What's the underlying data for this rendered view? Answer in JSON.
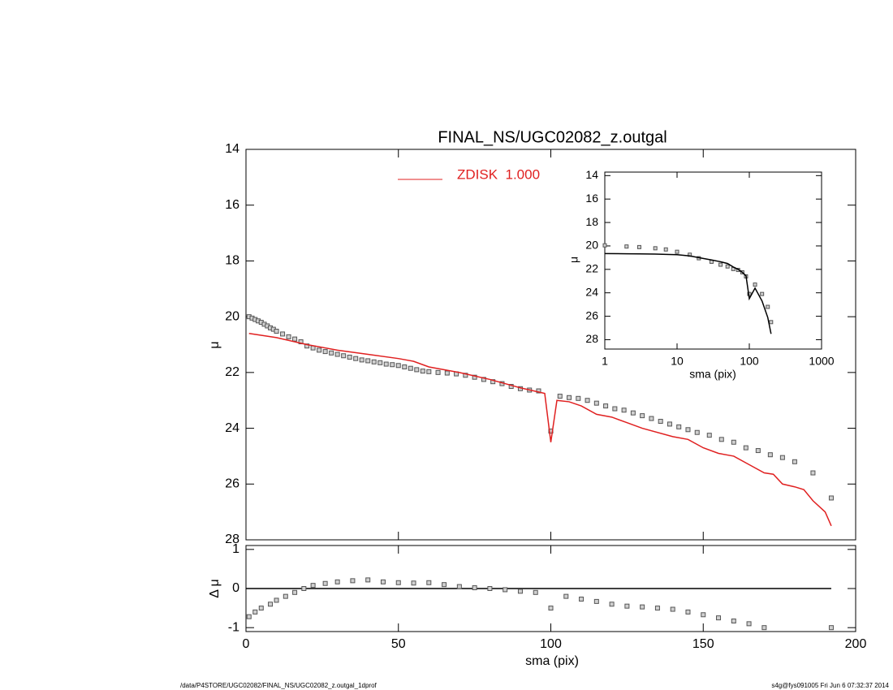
{
  "chart_data": [
    {
      "type": "scatter",
      "title": "FINAL_NS/UGC02082_z.outgal",
      "ylabel": "μ",
      "xlim": [
        0,
        200
      ],
      "xticks": [
        0,
        50,
        100,
        150,
        200
      ],
      "show_xtick_labels": false,
      "ylim": [
        28,
        14
      ],
      "yticks": [
        14,
        16,
        18,
        20,
        22,
        24,
        26,
        28
      ],
      "legend": "top-center",
      "series": [
        {
          "mode": "markers",
          "color": "#8c8c8c",
          "x": [
            1,
            2,
            3,
            4,
            5,
            6,
            7,
            8,
            9,
            10,
            12,
            14,
            16,
            18,
            20,
            22,
            24,
            26,
            28,
            30,
            32,
            34,
            36,
            38,
            40,
            42,
            44,
            46,
            48,
            50,
            52,
            54,
            56,
            58,
            60,
            63,
            66,
            69,
            72,
            75,
            78,
            81,
            84,
            87,
            90,
            93,
            96,
            100,
            103,
            106,
            109,
            112,
            115,
            118,
            121,
            124,
            127,
            130,
            133,
            136,
            139,
            142,
            145,
            148,
            152,
            156,
            160,
            164,
            168,
            172,
            176,
            180,
            186,
            192
          ],
          "values": [
            20.0,
            20.05,
            20.1,
            20.15,
            20.2,
            20.27,
            20.33,
            20.4,
            20.45,
            20.52,
            20.62,
            20.72,
            20.8,
            20.9,
            21.05,
            21.12,
            21.2,
            21.25,
            21.3,
            21.35,
            21.4,
            21.45,
            21.5,
            21.55,
            21.58,
            21.62,
            21.65,
            21.7,
            21.72,
            21.75,
            21.8,
            21.85,
            21.9,
            21.95,
            21.97,
            22.0,
            22.02,
            22.05,
            22.1,
            22.17,
            22.25,
            22.33,
            22.4,
            22.5,
            22.58,
            22.63,
            22.66,
            24.1,
            22.85,
            22.9,
            22.93,
            23.0,
            23.1,
            23.2,
            23.3,
            23.35,
            23.45,
            23.55,
            23.65,
            23.75,
            23.85,
            23.95,
            24.05,
            24.15,
            24.25,
            24.4,
            24.5,
            24.7,
            24.8,
            24.95,
            25.05,
            25.2,
            25.6,
            26.5
          ]
        },
        {
          "mode": "line",
          "name": "ZDISK  1.000",
          "color": "#e02020",
          "x": [
            1,
            10,
            20,
            30,
            40,
            50,
            55,
            60,
            70,
            80,
            90,
            98,
            100,
            102,
            106,
            110,
            115,
            120,
            125,
            130,
            140,
            145,
            150,
            155,
            160,
            165,
            170,
            173,
            176,
            180,
            183,
            186,
            190,
            192
          ],
          "values": [
            20.6,
            20.75,
            21.0,
            21.2,
            21.35,
            21.5,
            21.6,
            21.8,
            22.0,
            22.25,
            22.55,
            22.75,
            24.5,
            23.0,
            23.05,
            23.2,
            23.5,
            23.6,
            23.8,
            24.0,
            24.3,
            24.4,
            24.7,
            24.9,
            25.0,
            25.3,
            25.6,
            25.65,
            26.0,
            26.1,
            26.2,
            26.6,
            27.0,
            27.5
          ]
        }
      ]
    },
    {
      "type": "scatter",
      "xlabel": "sma (pix)",
      "ylabel": "Δ μ",
      "xlim": [
        0,
        200
      ],
      "xticks": [
        0,
        50,
        100,
        150,
        200
      ],
      "show_xtick_labels": true,
      "ylim": [
        -1.1,
        1.1
      ],
      "yticks": [
        -1,
        0,
        1
      ],
      "series": [
        {
          "mode": "line",
          "color": "#000000",
          "x": [
            0,
            192
          ],
          "values": [
            0,
            0
          ]
        },
        {
          "mode": "markers",
          "color": "#8c8c8c",
          "x": [
            1,
            3,
            5,
            8,
            10,
            13,
            16,
            19,
            22,
            26,
            30,
            35,
            40,
            45,
            50,
            55,
            60,
            65,
            70,
            75,
            80,
            85,
            90,
            95,
            100,
            105,
            110,
            115,
            120,
            125,
            130,
            135,
            140,
            145,
            150,
            155,
            160,
            165,
            170,
            192
          ],
          "values": [
            -0.72,
            -0.6,
            -0.5,
            -0.4,
            -0.3,
            -0.2,
            -0.1,
            0.0,
            0.08,
            0.13,
            0.17,
            0.2,
            0.22,
            0.17,
            0.15,
            0.14,
            0.15,
            0.1,
            0.05,
            0.02,
            0.0,
            -0.03,
            -0.07,
            -0.1,
            -0.5,
            -0.2,
            -0.27,
            -0.33,
            -0.4,
            -0.45,
            -0.47,
            -0.5,
            -0.53,
            -0.6,
            -0.67,
            -0.75,
            -0.83,
            -0.9,
            -1.0,
            -1.0
          ]
        }
      ]
    },
    {
      "type": "scatter",
      "xlabel": "sma (pix)",
      "ylabel": "μ",
      "xlog": true,
      "xlim": [
        1,
        1000
      ],
      "xticks": [
        1,
        10,
        100,
        1000
      ],
      "show_xtick_labels": true,
      "ylim": [
        28.8,
        13.7
      ],
      "yticks": [
        14,
        16,
        18,
        20,
        22,
        24,
        26,
        28
      ],
      "series": [
        {
          "mode": "markers",
          "color": "#8c8c8c",
          "x": [
            1,
            2,
            3,
            5,
            7,
            10,
            15,
            20,
            30,
            40,
            50,
            60,
            70,
            80,
            90,
            100,
            120,
            150,
            180,
            200
          ],
          "values": [
            19.95,
            20.05,
            20.1,
            20.2,
            20.3,
            20.5,
            20.75,
            21.05,
            21.35,
            21.6,
            21.75,
            21.97,
            22.05,
            22.25,
            22.6,
            24.1,
            23.3,
            24.1,
            25.2,
            26.5
          ]
        },
        {
          "mode": "line",
          "color": "#000000",
          "x": [
            1,
            2,
            3,
            5,
            7,
            10,
            15,
            20,
            30,
            40,
            50,
            60,
            70,
            80,
            90,
            100,
            120,
            150,
            180,
            200
          ],
          "values": [
            20.65,
            20.67,
            20.68,
            20.7,
            20.72,
            20.75,
            20.85,
            21.0,
            21.2,
            21.35,
            21.5,
            21.8,
            22.0,
            22.25,
            22.55,
            24.5,
            23.6,
            24.7,
            26.1,
            27.5
          ]
        }
      ]
    }
  ],
  "footer": {
    "left": "/data/P4STORE/UGC02082/FINAL_NS/UGC02082_z.outgal_1dprof",
    "right": "s4g@fys091005  Fri Jun  6 07:32:37 2014"
  }
}
